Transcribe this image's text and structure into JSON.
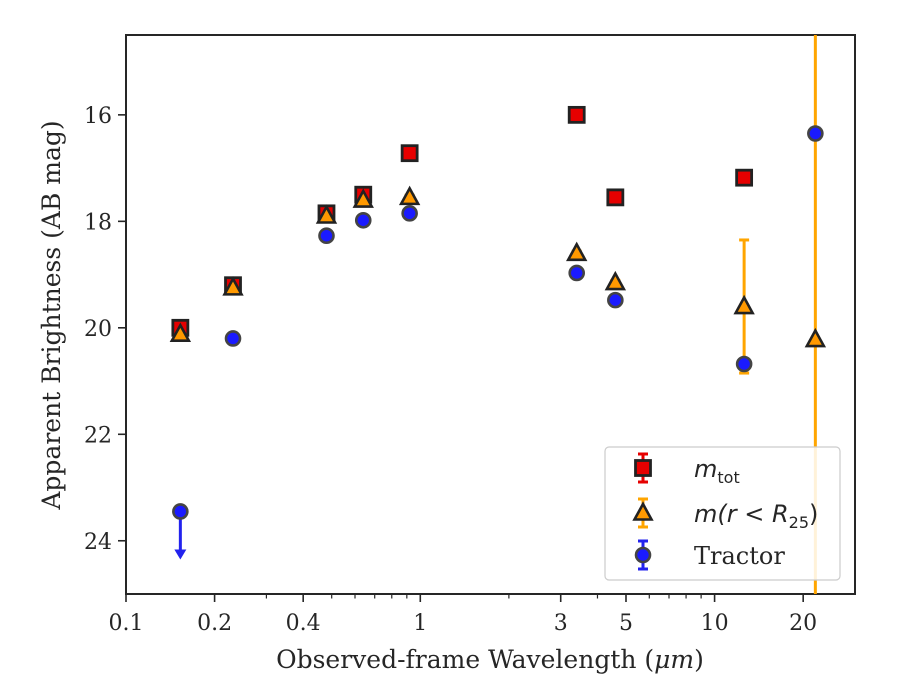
{
  "chart_data": {
    "type": "scatter",
    "xscale": "log",
    "yinverted": true,
    "xlim": [
      0.1,
      30
    ],
    "ylim": [
      25,
      14.5
    ],
    "xlabel_prefix": "Observed-frame Wavelength (",
    "xlabel_unit": "μm",
    "xlabel_suffix": ")",
    "ylabel": "Apparent Brightness (AB mag)",
    "xticks": [
      {
        "value": 0.1,
        "label": "0.1"
      },
      {
        "value": 0.2,
        "label": "0.2"
      },
      {
        "value": 0.4,
        "label": "0.4"
      },
      {
        "value": 1,
        "label": "1"
      },
      {
        "value": 3,
        "label": "3"
      },
      {
        "value": 5,
        "label": "5"
      },
      {
        "value": 10,
        "label": "10"
      },
      {
        "value": 20,
        "label": "20"
      }
    ],
    "yticks": [
      {
        "value": 16,
        "label": "16"
      },
      {
        "value": 18,
        "label": "18"
      },
      {
        "value": 20,
        "label": "20"
      },
      {
        "value": 22,
        "label": "22"
      },
      {
        "value": 24,
        "label": "24"
      }
    ],
    "legend_position": "lower right",
    "series": [
      {
        "name": "m_tot",
        "legend_main": "m",
        "legend_sub": "tot",
        "legend_tail": "",
        "marker": "square",
        "color": "#e60000",
        "edgecolor": "#222222",
        "errcolor": "#e60000",
        "points": [
          {
            "x": 0.153,
            "y": 20.0,
            "err": 0.08
          },
          {
            "x": 0.231,
            "y": 19.2,
            "err": 0.08
          },
          {
            "x": 0.48,
            "y": 17.85,
            "err": 0.06
          },
          {
            "x": 0.64,
            "y": 17.5,
            "err": 0.06
          },
          {
            "x": 0.92,
            "y": 16.72,
            "err": 0.05
          },
          {
            "x": 3.4,
            "y": 16.0,
            "err": 0.03
          },
          {
            "x": 4.6,
            "y": 17.55,
            "err": 0.03
          },
          {
            "x": 12.6,
            "y": 17.18,
            "err": 0.05
          }
        ]
      },
      {
        "name": "m(r < R25)",
        "legend_main": "m(r < R",
        "legend_sub": "25",
        "legend_tail": ")",
        "marker": "triangle",
        "color": "#ff9900",
        "edgecolor": "#222222",
        "errcolor": "#ffa500",
        "points": [
          {
            "x": 0.153,
            "y": 20.12,
            "err": 0.05
          },
          {
            "x": 0.231,
            "y": 19.25,
            "err": 0.05
          },
          {
            "x": 0.48,
            "y": 17.9,
            "err": 0.04
          },
          {
            "x": 0.64,
            "y": 17.6,
            "err": 0.04
          },
          {
            "x": 0.92,
            "y": 17.55,
            "err": 0.04
          },
          {
            "x": 3.4,
            "y": 18.6,
            "err": 0.04
          },
          {
            "x": 4.6,
            "y": 19.15,
            "err": 0.04
          },
          {
            "x": 12.6,
            "y": 19.6,
            "err": 1.25
          },
          {
            "x": 22.0,
            "y": 20.22,
            "err": 6.0
          }
        ]
      },
      {
        "name": "Tractor",
        "legend_main": "Tractor",
        "legend_sub": "",
        "legend_tail": "",
        "marker": "circle",
        "color": "#1a1aff",
        "edgecolor": "#444444",
        "errcolor": "#2222ee",
        "points": [
          {
            "x": 0.153,
            "y": 23.45,
            "err": 0,
            "upper_limit": true
          },
          {
            "x": 0.231,
            "y": 20.2,
            "err": 0.05
          },
          {
            "x": 0.48,
            "y": 18.27,
            "err": 0.04
          },
          {
            "x": 0.64,
            "y": 17.98,
            "err": 0.04
          },
          {
            "x": 0.92,
            "y": 17.85,
            "err": 0.04
          },
          {
            "x": 3.4,
            "y": 18.97,
            "err": 0.04
          },
          {
            "x": 4.6,
            "y": 19.48,
            "err": 0.04
          },
          {
            "x": 12.6,
            "y": 20.68,
            "err": 0.08
          },
          {
            "x": 22.0,
            "y": 16.35,
            "err": 0.1
          }
        ]
      }
    ]
  }
}
